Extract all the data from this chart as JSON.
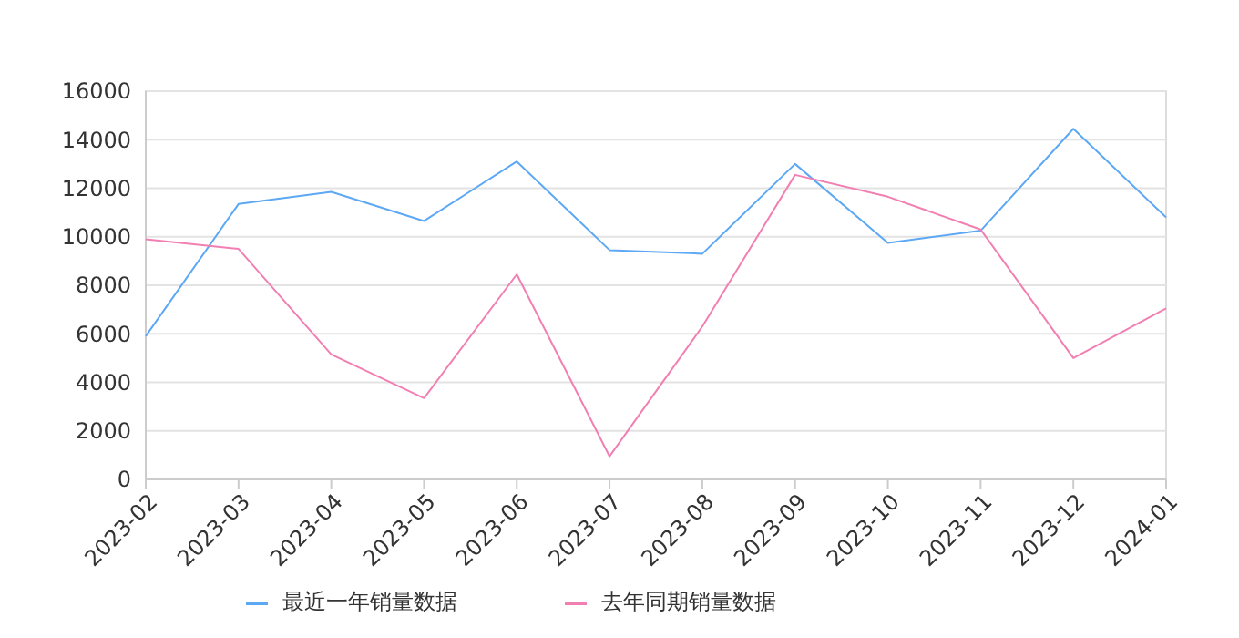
{
  "chart_data": {
    "type": "line",
    "categories": [
      "2023-02",
      "2023-03",
      "2023-04",
      "2023-05",
      "2023-06",
      "2023-07",
      "2023-08",
      "2023-09",
      "2023-10",
      "2023-11",
      "2023-12",
      "2024-01"
    ],
    "series": [
      {
        "name": "最近一年销量数据",
        "color": "#5ca8f5",
        "values": [
          5900,
          11350,
          11850,
          10650,
          13100,
          9450,
          9300,
          13000,
          9750,
          10250,
          14450,
          10800
        ]
      },
      {
        "name": "去年同期销量数据",
        "color": "#f27fb2",
        "values": [
          9900,
          9500,
          5150,
          3350,
          8450,
          950,
          6300,
          12550,
          11650,
          10300,
          5000,
          7050
        ]
      }
    ],
    "ylim": [
      0,
      16000
    ],
    "yticks": [
      0,
      2000,
      4000,
      6000,
      8000,
      10000,
      12000,
      14000,
      16000
    ],
    "grid": "y",
    "legend": "bottom",
    "marker": "none",
    "line_style": "solid"
  }
}
